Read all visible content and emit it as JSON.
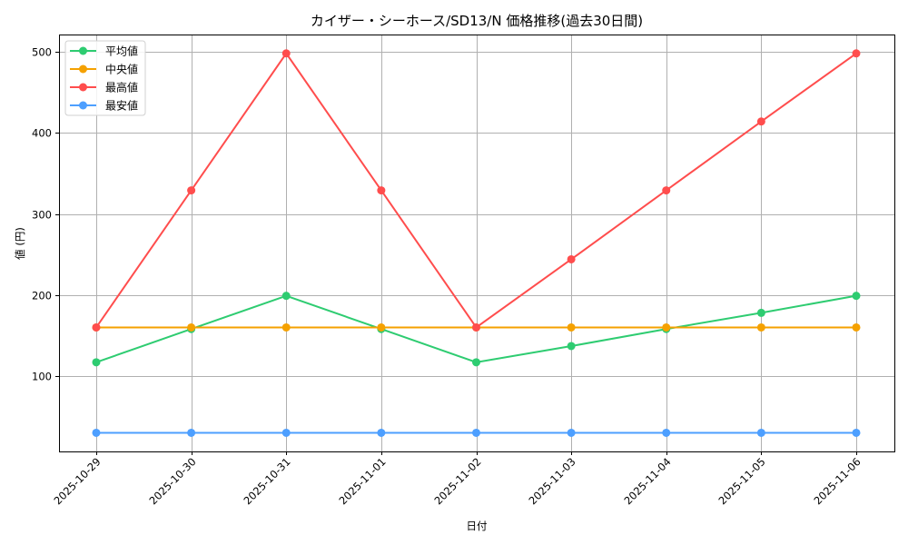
{
  "chart_data": {
    "type": "line",
    "title": "カイザー・シーホース/SD13/N 価格推移(過去30日間)",
    "xlabel": "日付",
    "ylabel": "値 (円)",
    "categories": [
      "2025-10-29",
      "2025-10-30",
      "2025-10-31",
      "2025-11-01",
      "2025-11-02",
      "2025-11-03",
      "2025-11-04",
      "2025-11-05",
      "2025-11-06"
    ],
    "series": [
      {
        "name": "平均値",
        "color": "#2ecc71",
        "values": [
          117,
          158,
          199,
          158,
          117,
          137,
          158,
          178,
          199
        ]
      },
      {
        "name": "中央値",
        "color": "#f5a100",
        "values": [
          160,
          160,
          160,
          160,
          160,
          160,
          160,
          160,
          160
        ]
      },
      {
        "name": "最高値",
        "color": "#ff4d4d",
        "values": [
          160,
          329,
          498,
          329,
          160,
          244,
          329,
          414,
          498
        ]
      },
      {
        "name": "最安値",
        "color": "#4d9fff",
        "values": [
          30,
          30,
          30,
          30,
          30,
          30,
          30,
          30,
          30
        ]
      }
    ],
    "yticks": [
      100,
      200,
      300,
      400,
      500
    ],
    "ylim": [
      7,
      522
    ],
    "grid": true,
    "legend_position": "upper left",
    "marker": "circle"
  }
}
